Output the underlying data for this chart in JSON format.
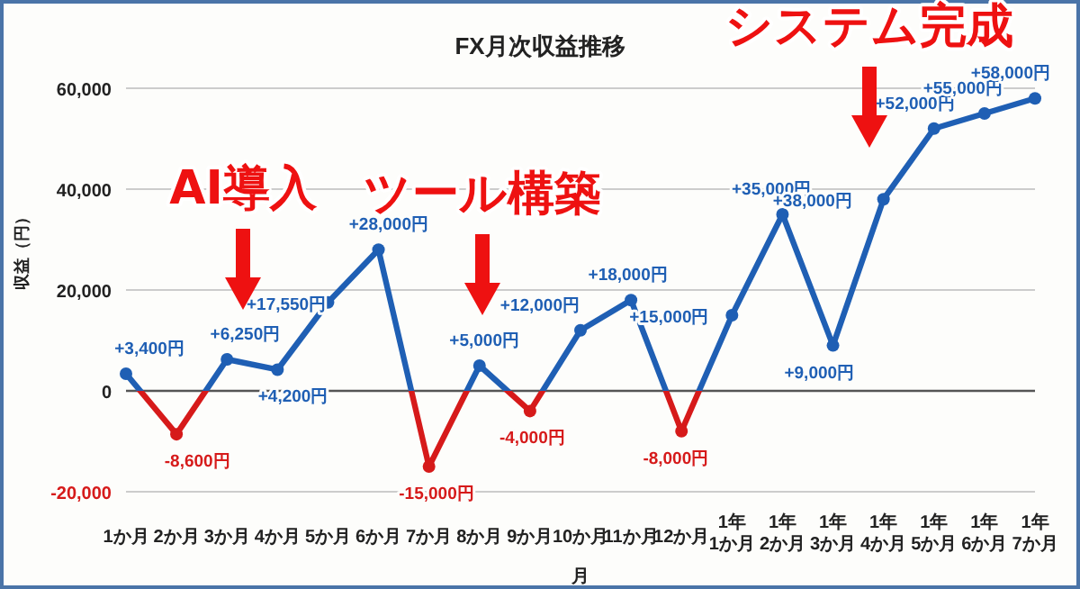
{
  "chart_data": {
    "type": "line",
    "title": "FX月次収益推移",
    "xlabel": "月",
    "ylabel": "収益（円）",
    "categories": [
      "1か月",
      "2か月",
      "3か月",
      "4か月",
      "5か月",
      "6か月",
      "7か月",
      "8か月",
      "9か月",
      "10か月",
      "11か月",
      "12か月",
      "1年\n1か月",
      "1年\n2か月",
      "1年\n3か月",
      "1年\n4か月",
      "1年\n5か月",
      "1年\n6か月",
      "1年\n7か月"
    ],
    "series": [
      {
        "color": "#1f5fb4",
        "values": [
          3400,
          -8600,
          6250,
          4200,
          17550,
          28000,
          -15000,
          5000,
          -4000,
          12000,
          18000,
          -8000,
          15000,
          35000,
          9000,
          38000,
          52000,
          55000,
          58000
        ],
        "colors": [
          "#1f5fb4",
          "#d61a1a",
          "#1f5fb4",
          "#1f5fb4",
          "#1f5fb4",
          "#1f5fb4",
          "#d61a1a",
          "#1f5fb4",
          "#d61a1a",
          "#1f5fb4",
          "#1f5fb4",
          "#d61a1a",
          "#1f5fb4",
          "#1f5fb4",
          "#1f5fb4",
          "#1f5fb4",
          "#1f5fb4",
          "#1f5fb4",
          "#1f5fb4"
        ],
        "value_labels": [
          "+3,400円",
          "-8,600円",
          "+6,250円",
          "+4,200円",
          "+17,550円",
          "+28,000円",
          "-15,000円",
          "+5,000円",
          "-4,000円",
          "+12,000円",
          "+18,000円",
          "-8,000円",
          "+15,000円",
          "+35,000円",
          "+9,000円",
          "+38,000円",
          "+52,000円",
          "+55,000円",
          "+58,000円"
        ]
      }
    ],
    "ylim": [
      -20000,
      60000
    ],
    "yticks": [
      {
        "value": -20000,
        "label": "-20,000"
      },
      {
        "value": 0,
        "label": "0"
      },
      {
        "value": 20000,
        "label": "20,000"
      },
      {
        "value": 40000,
        "label": "40,000"
      },
      {
        "value": 60000,
        "label": "60,000"
      }
    ],
    "grid": "y",
    "legend": false,
    "marker": "circle",
    "line_style": "solid",
    "ref_lines": [
      {
        "axis": "y",
        "value": 0,
        "color": "#555555"
      }
    ],
    "annotations": [
      "AI導入",
      "ツール構築",
      "システム完成"
    ]
  }
}
